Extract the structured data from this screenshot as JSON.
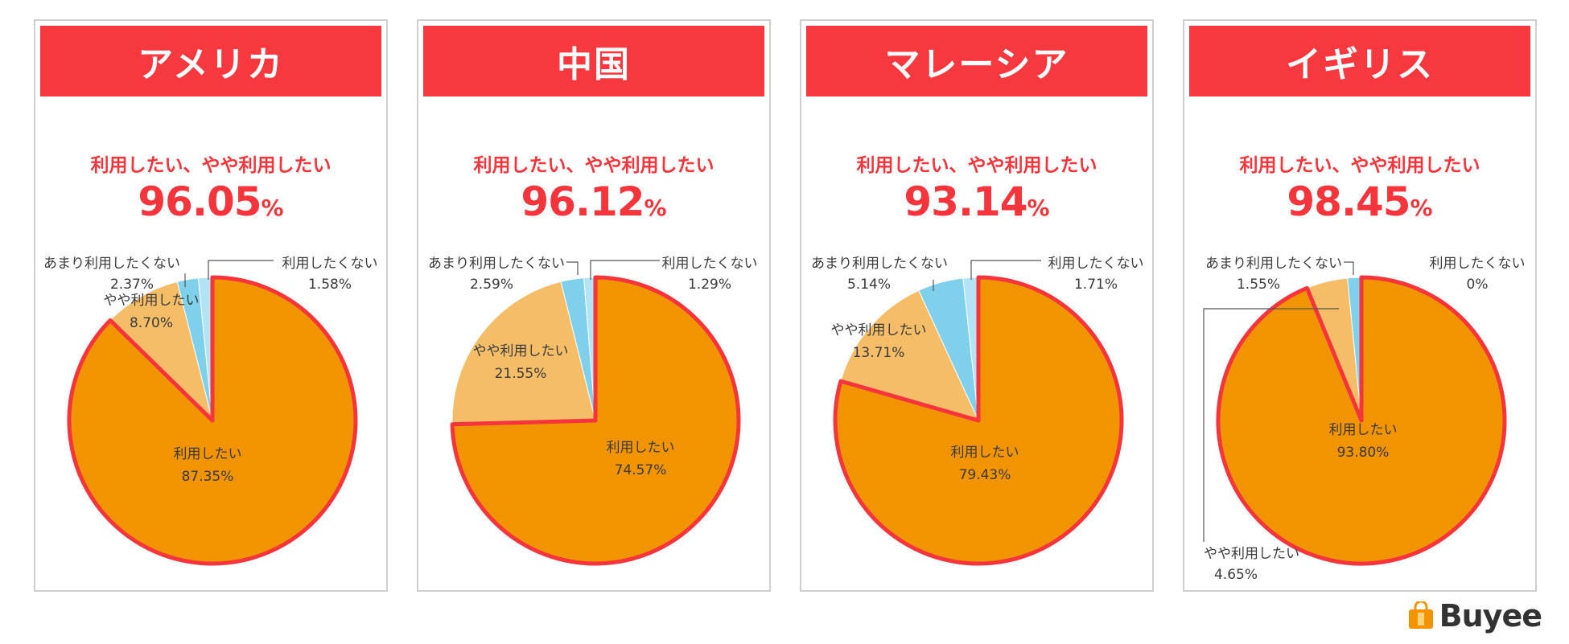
{
  "colors": {
    "header": "#f6393f",
    "accent": "#f4353b",
    "want": "#f29400",
    "somewhat_want": "#f5bd68",
    "not_really": "#7fd0ea",
    "not_want": "#b4e3f5",
    "outline": "#f4353b"
  },
  "summary_label": "利用したい、やや利用したい",
  "chart_data": [
    {
      "type": "pie",
      "title": "アメリカ",
      "summary_value": "96.05",
      "summary_unit": "%",
      "slices": [
        {
          "label": "利用したい",
          "value": 87.35,
          "value_text": "87.35%"
        },
        {
          "label": "やや利用したい",
          "value": 8.7,
          "value_text": "8.70%"
        },
        {
          "label": "あまり利用したくない",
          "value": 2.37,
          "value_text": "2.37%"
        },
        {
          "label": "利用したくない",
          "value": 1.58,
          "value_text": "1.58%"
        }
      ]
    },
    {
      "type": "pie",
      "title": "中国",
      "summary_value": "96.12",
      "summary_unit": "%",
      "slices": [
        {
          "label": "利用したい",
          "value": 74.57,
          "value_text": "74.57%"
        },
        {
          "label": "やや利用したい",
          "value": 21.55,
          "value_text": "21.55%"
        },
        {
          "label": "あまり利用したくない",
          "value": 2.59,
          "value_text": "2.59%"
        },
        {
          "label": "利用したくない",
          "value": 1.29,
          "value_text": "1.29%"
        }
      ]
    },
    {
      "type": "pie",
      "title": "マレーシア",
      "summary_value": "93.14",
      "summary_unit": "%",
      "slices": [
        {
          "label": "利用したい",
          "value": 79.43,
          "value_text": "79.43%"
        },
        {
          "label": "やや利用したい",
          "value": 13.71,
          "value_text": "13.71%"
        },
        {
          "label": "あまり利用したくない",
          "value": 5.14,
          "value_text": "5.14%"
        },
        {
          "label": "利用したくない",
          "value": 1.71,
          "value_text": "1.71%"
        }
      ]
    },
    {
      "type": "pie",
      "title": "イギリス",
      "summary_value": "98.45",
      "summary_unit": "%",
      "slices": [
        {
          "label": "利用したい",
          "value": 93.8,
          "value_text": "93.80%"
        },
        {
          "label": "やや利用したい",
          "value": 4.65,
          "value_text": "4.65%"
        },
        {
          "label": "あまり利用したくない",
          "value": 1.55,
          "value_text": "1.55%"
        },
        {
          "label": "利用したくない",
          "value": 0,
          "value_text": "0%"
        }
      ]
    }
  ],
  "logo": {
    "text": "Buyee",
    "icon": "shopping-bag-icon"
  }
}
